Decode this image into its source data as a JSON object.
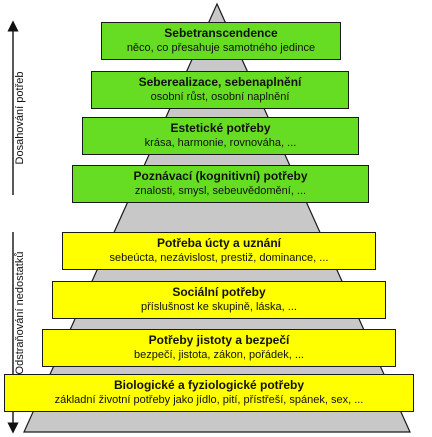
{
  "levels": [
    {
      "title": "Sebetranscendence",
      "desc": "něco, co přesahuje samotného jedince",
      "group": "growth"
    },
    {
      "title": "Seberealizace, sebenaplnění",
      "desc": "osobní růst, osobní naplnění",
      "group": "growth"
    },
    {
      "title": "Estetické potřeby",
      "desc": "krása, harmonie, rovnováha, ...",
      "group": "growth"
    },
    {
      "title": "Poznávací (kognitivní) potřeby",
      "desc": "znalosti, smysl, sebeuvědomění, ...",
      "group": "growth"
    },
    {
      "title": "Potřeba úcty a uznání",
      "desc": "sebeúcta, nezávislost, prestiž, dominance, ...",
      "group": "deficit"
    },
    {
      "title": "Sociální potřeby",
      "desc": "příslušnost ke skupině, láska, ...",
      "group": "deficit"
    },
    {
      "title": "Potřeby jistoty a bezpečí",
      "desc": "bezpečí, jistota, zákon, pořádek, ...",
      "group": "deficit"
    },
    {
      "title": "Biologické a fyziologické potřeby",
      "desc": "základní životní potřeby jako jídlo, pití, přístřeší, spánek, sex, ...",
      "group": "deficit"
    }
  ],
  "side_labels": {
    "growth": "Dosahování potřeb",
    "deficit": "Odstraňování nedostatků"
  },
  "colors": {
    "growth": "#66dd22",
    "deficit": "#ffff00",
    "pyramid": "#c8c8c8",
    "border": "#1a1a1a"
  }
}
